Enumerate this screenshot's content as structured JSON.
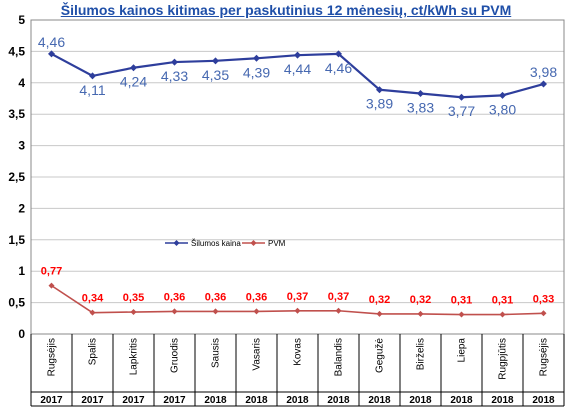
{
  "chart_data": {
    "type": "line",
    "title": "Šilumos kainos kitimas per paskutinius 12 mėnesių, ct/kWh su PVM",
    "categories": [
      "Rugsėjis",
      "Spalis",
      "Lapkritis",
      "Gruodis",
      "Sausis",
      "Vasaris",
      "Kovas",
      "Balandis",
      "Gegužė",
      "Birželis",
      "Liepa",
      "Rugpjūtis",
      "Rugsėjis"
    ],
    "years": [
      "2017",
      "2017",
      "2017",
      "2017",
      "2018",
      "2018",
      "2018",
      "2018",
      "2018",
      "2018",
      "2018",
      "2018",
      "2018"
    ],
    "series": [
      {
        "name": "Šilumos kaina",
        "color": "#2e3e9c",
        "values": [
          4.46,
          4.11,
          4.24,
          4.33,
          4.35,
          4.39,
          4.44,
          4.46,
          3.89,
          3.83,
          3.77,
          3.8,
          3.98
        ],
        "labels": [
          "4,46",
          "4,11",
          "4,24",
          "4,33",
          "4,35",
          "4,39",
          "4,44",
          "4,46",
          "3,89",
          "3,83",
          "3,77",
          "3,80",
          "3,98"
        ],
        "label_color": "#4668b0"
      },
      {
        "name": "PVM",
        "color": "#c0504d",
        "values": [
          0.77,
          0.34,
          0.35,
          0.36,
          0.36,
          0.36,
          0.37,
          0.37,
          0.32,
          0.32,
          0.31,
          0.31,
          0.33
        ],
        "labels": [
          "0,77",
          "0,34",
          "0,35",
          "0,36",
          "0,36",
          "0,36",
          "0,37",
          "0,37",
          "0,32",
          "0,32",
          "0,31",
          "0,31",
          "0,33"
        ],
        "label_color": "#ff0000"
      }
    ],
    "yticks": [
      "0",
      "0,5",
      "1",
      "1,5",
      "2",
      "2,5",
      "3",
      "3,5",
      "4",
      "4,5",
      "5"
    ],
    "ylim": [
      0,
      5
    ],
    "grid": true,
    "legend": "center-left"
  }
}
